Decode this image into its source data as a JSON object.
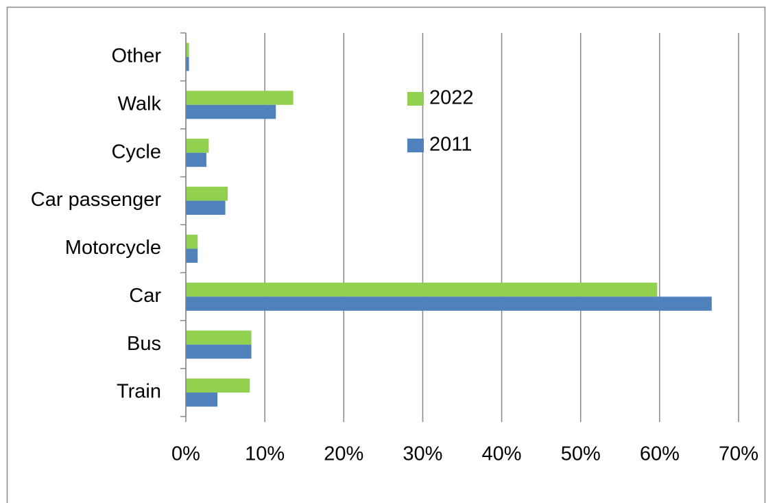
{
  "chart_data": {
    "type": "hbar",
    "categories": [
      "Train",
      "Bus",
      "Car",
      "Motorcycle",
      "Car passenger",
      "Cycle",
      "Walk",
      "Other"
    ],
    "series": [
      {
        "name": "2022",
        "color": "#92d050",
        "values": [
          8.1,
          8.3,
          59.7,
          1.5,
          5.3,
          2.9,
          13.6,
          0.4
        ]
      },
      {
        "name": "2011",
        "color": "#4f81bd",
        "values": [
          4.0,
          8.3,
          66.6,
          1.5,
          5.0,
          2.6,
          11.4,
          0.4
        ]
      }
    ],
    "xlim": [
      0,
      70
    ],
    "xticks": [
      {
        "value": 0,
        "label": "0%"
      },
      {
        "value": 10,
        "label": "10%"
      },
      {
        "value": 20,
        "label": "20%"
      },
      {
        "value": 30,
        "label": "30%"
      },
      {
        "value": 40,
        "label": "40%"
      },
      {
        "value": 50,
        "label": "50%"
      },
      {
        "value": 60,
        "label": "60%"
      },
      {
        "value": 70,
        "label": "70%"
      }
    ],
    "grid": true,
    "legend": "top-right"
  }
}
